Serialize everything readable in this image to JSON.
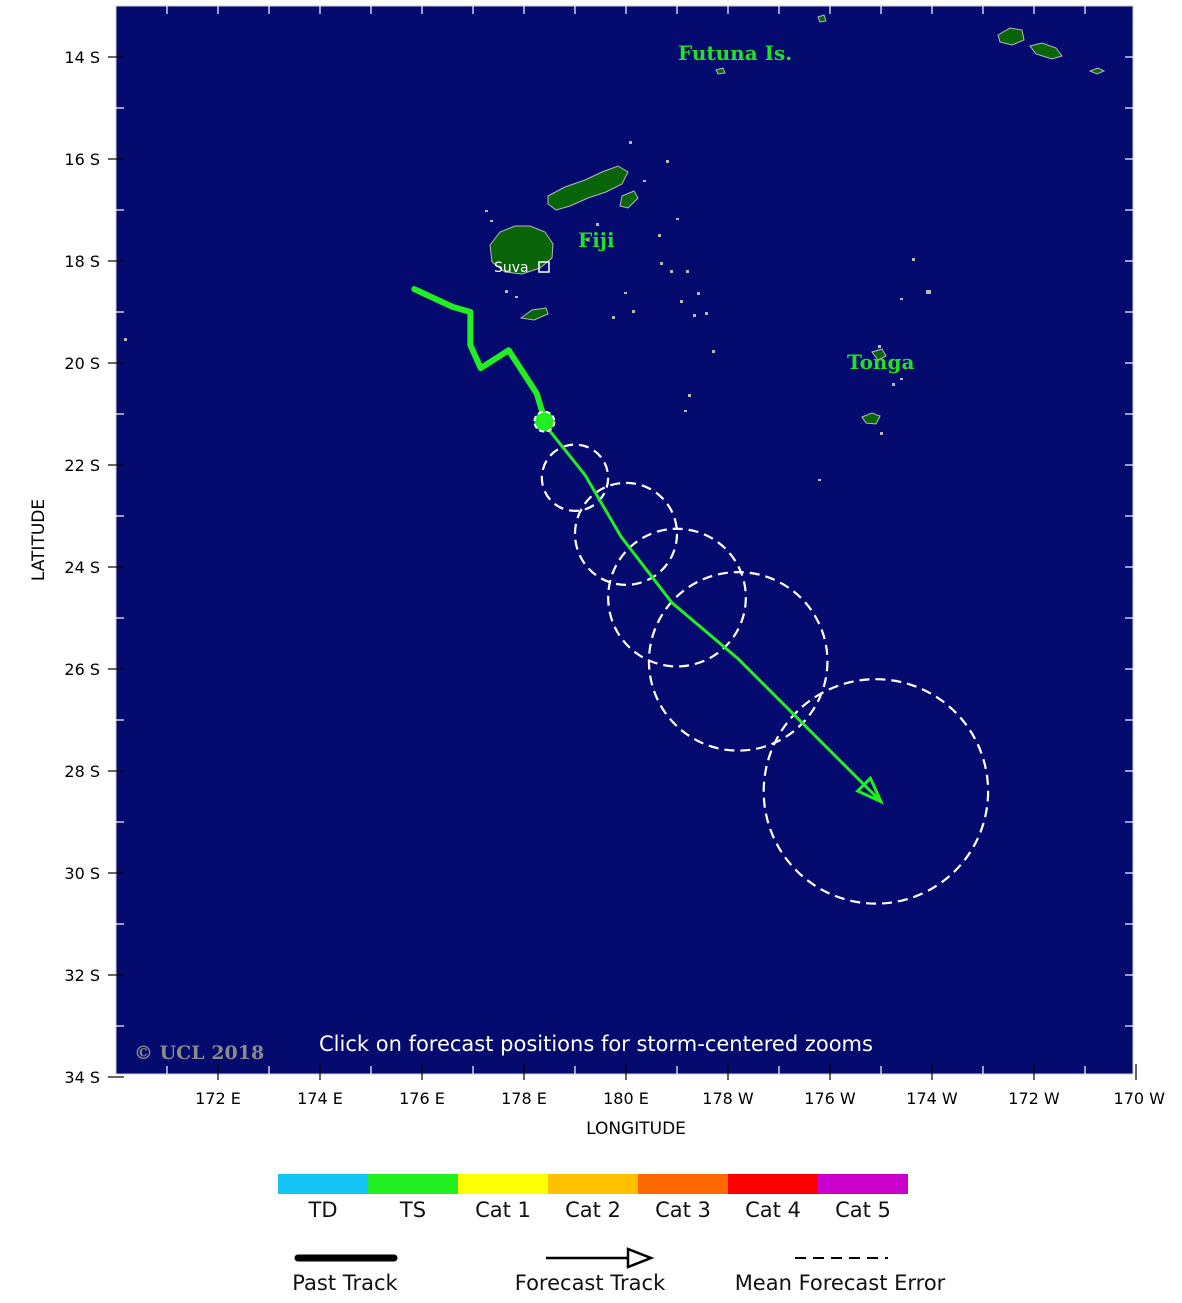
{
  "axes": {
    "ylabel": "LATITUDE",
    "xlabel": "LONGITUDE",
    "lat_ticks": [
      "14 S",
      "16 S",
      "18 S",
      "20 S",
      "22 S",
      "24 S",
      "26 S",
      "28 S",
      "30 S",
      "32 S",
      "34 S"
    ],
    "lon_ticks": [
      "172 E",
      "174 E",
      "176 E",
      "178 E",
      "180 E",
      "178 W",
      "176 W",
      "174 W",
      "172 W",
      "170 W"
    ]
  },
  "places": {
    "futuna": "Futuna Is.",
    "fiji": "Fiji",
    "suva": "Suva",
    "tonga": "Tonga"
  },
  "copyright": "© UCL 2018",
  "hint": "Click on forecast positions for storm-centered zooms",
  "legend": {
    "categories": [
      {
        "label": "TD",
        "color": "#14c4f4"
      },
      {
        "label": "TS",
        "color": "#22ee22"
      },
      {
        "label": "Cat 1",
        "color": "#ffff00"
      },
      {
        "label": "Cat 2",
        "color": "#ffc000"
      },
      {
        "label": "Cat 3",
        "color": "#ff6a00"
      },
      {
        "label": "Cat 4",
        "color": "#ff0000"
      },
      {
        "label": "Cat 5",
        "color": "#cc00cc"
      }
    ],
    "past_track": "Past Track",
    "forecast_track": "Forecast Track",
    "mean_error": "Mean Forecast Error"
  },
  "colors": {
    "ocean": "#040a6e",
    "land": "#0a640a",
    "track": "#22ee22",
    "error_circle": "#ffffff"
  },
  "storm": {
    "category": "TS",
    "past_track": [
      {
        "lat": -18.55,
        "lon": 175.85
      },
      {
        "lat": -18.9,
        "lon": 176.6
      },
      {
        "lat": -19.0,
        "lon": 176.95
      },
      {
        "lat": -19.65,
        "lon": 176.95
      },
      {
        "lat": -20.1,
        "lon": 177.15
      },
      {
        "lat": -19.75,
        "lon": 177.7
      },
      {
        "lat": -20.6,
        "lon": 178.25
      },
      {
        "lat": -21.1,
        "lon": 178.4
      }
    ],
    "current_position": {
      "lat": -21.15,
      "lon": 178.4
    },
    "forecast_track": [
      {
        "lat": -21.2,
        "lon": 178.4
      },
      {
        "lat": -22.2,
        "lon": 179.2
      },
      {
        "lat": -23.4,
        "lon": 179.9
      },
      {
        "lat": -24.7,
        "lon": -179.1
      },
      {
        "lat": -25.8,
        "lon": -177.8
      },
      {
        "lat": -28.6,
        "lon": -175.0
      }
    ],
    "error_circles": [
      {
        "lat": -22.25,
        "lon": 179.0,
        "radius_deg": 0.65
      },
      {
        "lat": -23.35,
        "lon": 180.0,
        "radius_deg": 1.0
      },
      {
        "lat": -24.6,
        "lon": -179.0,
        "radius_deg": 1.35
      },
      {
        "lat": -25.85,
        "lon": -177.8,
        "radius_deg": 1.75
      },
      {
        "lat": -28.4,
        "lon": -175.1,
        "radius_deg": 2.2
      }
    ]
  }
}
